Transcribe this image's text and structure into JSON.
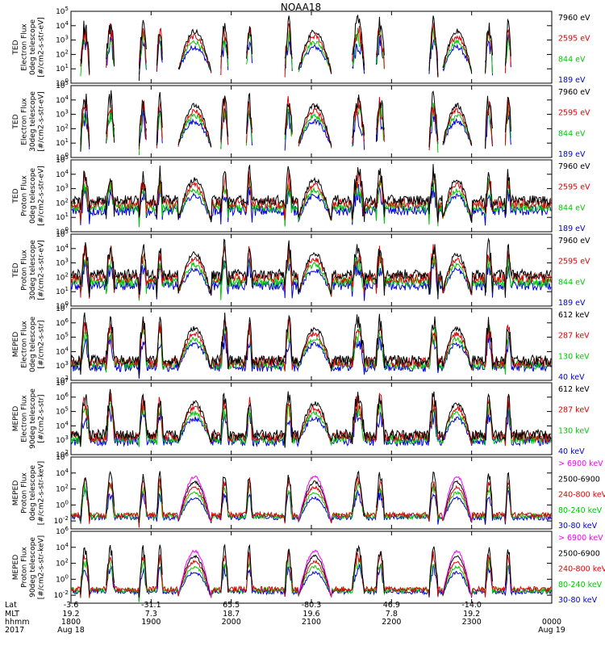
{
  "chart_data": {
    "type": "line",
    "title": "NOAA18",
    "x_axis": {
      "row_labels": [
        "Lat",
        "MLT",
        "hhmm",
        "2017"
      ],
      "ticks": [
        {
          "lat": "-3.6",
          "mlt": "19.2",
          "hhmm": "1800",
          "date": "Aug 18"
        },
        {
          "lat": "-31.1",
          "mlt": "7.3",
          "hhmm": "1900",
          "date": ""
        },
        {
          "lat": "65.5",
          "mlt": "18.7",
          "hhmm": "2000",
          "date": ""
        },
        {
          "lat": "-80.3",
          "mlt": "19.6",
          "hhmm": "2100",
          "date": ""
        },
        {
          "lat": "46.9",
          "mlt": "7.8",
          "hhmm": "2200",
          "date": ""
        },
        {
          "lat": "-14.0",
          "mlt": "19.2",
          "hhmm": "2300",
          "date": ""
        },
        {
          "lat": "",
          "mlt": "",
          "hhmm": "0000",
          "date": "Aug 19"
        }
      ]
    },
    "panels": [
      {
        "ylabel": [
          "TED",
          "Electron Flux",
          "0deg telescope",
          "[#/cm2-s-str-eV]"
        ],
        "scale": "log",
        "ylim_exp": [
          0,
          5
        ],
        "tick_labels": [
          "10^0",
          "10^1",
          "10^2",
          "10^3",
          "10^4",
          "10^5"
        ],
        "legend": [
          {
            "label": "7960 eV",
            "color": "#000000"
          },
          {
            "label": "2595 eV",
            "color": "#e00000"
          },
          {
            "label": "844 eV",
            "color": "#00c800"
          },
          {
            "label": "189 eV",
            "color": "#0000dd"
          }
        ]
      },
      {
        "ylabel": [
          "TED",
          "Electron Flux",
          "30deg telescope",
          "[#/cm2-s-str-eV]"
        ],
        "scale": "log",
        "ylim_exp": [
          0,
          5
        ],
        "tick_labels": [
          "10^0",
          "10^1",
          "10^2",
          "10^3",
          "10^4",
          "10^5"
        ],
        "legend": [
          {
            "label": "7960 eV",
            "color": "#000000"
          },
          {
            "label": "2595 eV",
            "color": "#e00000"
          },
          {
            "label": "844 eV",
            "color": "#00c800"
          },
          {
            "label": "189 eV",
            "color": "#0000dd"
          }
        ]
      },
      {
        "ylabel": [
          "TED",
          "Proton Flux",
          "0deg telescope",
          "[#/cm2-s-str-eV]"
        ],
        "scale": "log",
        "ylim_exp": [
          0,
          5
        ],
        "tick_labels": [
          "10^0",
          "10^1",
          "10^2",
          "10^3",
          "10^4",
          "10^5"
        ],
        "legend": [
          {
            "label": "7960 eV",
            "color": "#000000"
          },
          {
            "label": "2595 eV",
            "color": "#e00000"
          },
          {
            "label": "844 eV",
            "color": "#00c800"
          },
          {
            "label": "189 eV",
            "color": "#0000dd"
          }
        ]
      },
      {
        "ylabel": [
          "TED",
          "Proton Flux",
          "30deg telescope",
          "[#/cm2-s-str-eV]"
        ],
        "scale": "log",
        "ylim_exp": [
          0,
          5
        ],
        "tick_labels": [
          "10^0",
          "10^1",
          "10^2",
          "10^3",
          "10^4",
          "10^5"
        ],
        "legend": [
          {
            "label": "7960 eV",
            "color": "#000000"
          },
          {
            "label": "2595 eV",
            "color": "#e00000"
          },
          {
            "label": "844 eV",
            "color": "#00c800"
          },
          {
            "label": "189 eV",
            "color": "#0000dd"
          }
        ]
      },
      {
        "ylabel": [
          "MEPED",
          "Electron Flux",
          "0deg telescope",
          "[#/cm2-s-str]"
        ],
        "scale": "log",
        "ylim_exp": [
          2,
          7
        ],
        "tick_labels": [
          "10^2",
          "10^3",
          "10^4",
          "10^5",
          "10^6",
          "10^7"
        ],
        "legend": [
          {
            "label": "612 keV",
            "color": "#000000"
          },
          {
            "label": "287 keV",
            "color": "#e00000"
          },
          {
            "label": "130 keV",
            "color": "#00c800"
          },
          {
            "label": "40 keV",
            "color": "#0000dd"
          }
        ]
      },
      {
        "ylabel": [
          "MEPED",
          "Electron Flux",
          "90deg telescope",
          "[#/cm2-s-str]"
        ],
        "scale": "log",
        "ylim_exp": [
          2,
          7
        ],
        "tick_labels": [
          "10^2",
          "10^3",
          "10^4",
          "10^5",
          "10^6",
          "10^7"
        ],
        "legend": [
          {
            "label": "612 keV",
            "color": "#000000"
          },
          {
            "label": "287 keV",
            "color": "#e00000"
          },
          {
            "label": "130 keV",
            "color": "#00c800"
          },
          {
            "label": "40 keV",
            "color": "#0000dd"
          }
        ]
      },
      {
        "ylabel": [
          "MEPED",
          "Proton Flux",
          "0deg telescope",
          "[#/cm2-s-str-keV]"
        ],
        "scale": "log",
        "ylim_exp": [
          -3,
          6
        ],
        "tick_labels": [
          "10^-2",
          "10^0",
          "10^2",
          "10^4",
          "10^6"
        ],
        "legend": [
          {
            "label": "> 6900 keV",
            "color": "#ff00ff"
          },
          {
            "label": "2500-6900",
            "color": "#000000"
          },
          {
            "label": "240-800 keV",
            "color": "#e00000"
          },
          {
            "label": "80-240 keV",
            "color": "#00c800"
          },
          {
            "label": "30-80 keV",
            "color": "#0000dd"
          }
        ]
      },
      {
        "ylabel": [
          "MEPED",
          "Proton Flux",
          "90deg telescope",
          "[#/cm2-s-str-keV]"
        ],
        "scale": "log",
        "ylim_exp": [
          -3,
          6
        ],
        "tick_labels": [
          "10^-2",
          "10^0",
          "10^2",
          "10^4",
          "10^6"
        ],
        "legend": [
          {
            "label": "> 6900 keV",
            "color": "#ff00ff"
          },
          {
            "label": "2500-6900",
            "color": "#000000"
          },
          {
            "label": "240-800 keV",
            "color": "#e00000"
          },
          {
            "label": "80-240 keV",
            "color": "#00c800"
          },
          {
            "label": "30-80 keV",
            "color": "#0000dd"
          }
        ]
      }
    ],
    "passes_hhmm": [
      {
        "start": "1807",
        "end": "1814",
        "kind": "polar"
      },
      {
        "start": "1826",
        "end": "1833",
        "kind": "polar"
      },
      {
        "start": "1851",
        "end": "1857",
        "kind": "polar"
      },
      {
        "start": "1904",
        "end": "1909",
        "kind": "polar"
      },
      {
        "start": "1920",
        "end": "1945",
        "kind": "radiation-belt"
      },
      {
        "start": "1952",
        "end": "1958",
        "kind": "polar"
      },
      {
        "start": "2011",
        "end": "2016",
        "kind": "polar"
      },
      {
        "start": "2040",
        "end": "2046",
        "kind": "polar"
      },
      {
        "start": "2050",
        "end": "2115",
        "kind": "radiation-belt"
      },
      {
        "start": "2130",
        "end": "2140",
        "kind": "polar"
      },
      {
        "start": "2148",
        "end": "2155",
        "kind": "polar"
      },
      {
        "start": "2228",
        "end": "2235",
        "kind": "polar"
      },
      {
        "start": "2238",
        "end": "2300",
        "kind": "radiation-belt"
      },
      {
        "start": "2310",
        "end": "2316",
        "kind": "polar"
      },
      {
        "start": "2325",
        "end": "2330",
        "kind": "polar"
      }
    ]
  }
}
